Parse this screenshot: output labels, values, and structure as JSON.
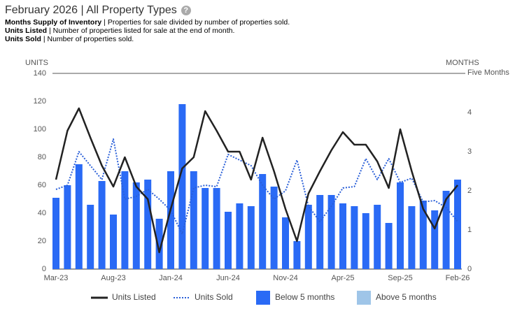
{
  "header": {
    "title": "February 2026 | All Property Types",
    "definitions": [
      {
        "term": "Months Supply of Inventory",
        "text": "Properties for sale divided by number of properties sold."
      },
      {
        "term": "Units Listed",
        "text": "Number of properties listed for sale at the end of month."
      },
      {
        "term": "Units Sold",
        "text": "Number of properties sold."
      }
    ]
  },
  "chart_data": {
    "type": "combo",
    "y_label": "UNITS",
    "y2_label": "MONTHS",
    "categories": [
      "Mar-23",
      null,
      null,
      null,
      null,
      "Aug-23",
      null,
      null,
      null,
      null,
      "Jan-24",
      null,
      null,
      null,
      null,
      "Jun-24",
      null,
      null,
      null,
      null,
      "Nov-24",
      null,
      null,
      null,
      null,
      "Apr-25",
      null,
      null,
      null,
      null,
      "Sep-25",
      null,
      null,
      null,
      null,
      "Feb-26"
    ],
    "ylim": [
      0,
      140
    ],
    "yticks": [
      0,
      20,
      40,
      60,
      80,
      100,
      120,
      140
    ],
    "y2lim": [
      0,
      5
    ],
    "y2ticks": [
      0,
      1,
      2,
      3,
      4,
      {
        "value": 5,
        "label": "Five Months"
      }
    ],
    "series": [
      {
        "name": "Units Listed",
        "kind": "line",
        "color": "#222222",
        "values": [
          64,
          99,
          115,
          94,
          74,
          59,
          80,
          59,
          50,
          12,
          43,
          72,
          80,
          113,
          99,
          84,
          84,
          64,
          94,
          70,
          43,
          20,
          54,
          70,
          85,
          98,
          89,
          89,
          77,
          58,
          100,
          70,
          43,
          29,
          50,
          60
        ]
      },
      {
        "name": "Units Sold",
        "kind": "dotted",
        "color": "#2a5fd8",
        "values": [
          57,
          60,
          84,
          74,
          64,
          93,
          50,
          52,
          57,
          50,
          42,
          25,
          58,
          60,
          59,
          82,
          78,
          74,
          60,
          50,
          56,
          78,
          45,
          34,
          45,
          58,
          59,
          79,
          64,
          79,
          62,
          65,
          48,
          49,
          44,
          34
        ]
      },
      {
        "name": "Below 5 months",
        "kind": "bar",
        "color": "#2a6af5",
        "values": [
          51,
          60,
          75,
          46,
          63,
          39,
          70,
          62,
          64,
          36,
          70,
          118,
          70,
          58,
          58,
          41,
          47,
          45,
          68,
          59,
          37,
          20,
          46,
          53,
          53,
          47,
          45,
          40,
          46,
          33,
          62,
          45,
          49,
          42,
          56,
          64
        ]
      },
      {
        "name": "Above 5 months",
        "kind": "bar",
        "color": "#9fc5e8",
        "values": [
          null,
          null,
          null,
          null,
          null,
          null,
          null,
          null,
          null,
          null,
          null,
          null,
          null,
          null,
          null,
          null,
          null,
          null,
          null,
          null,
          null,
          null,
          null,
          null,
          null,
          null,
          null,
          null,
          null,
          null,
          null,
          null,
          null,
          null,
          null,
          null
        ]
      }
    ]
  }
}
